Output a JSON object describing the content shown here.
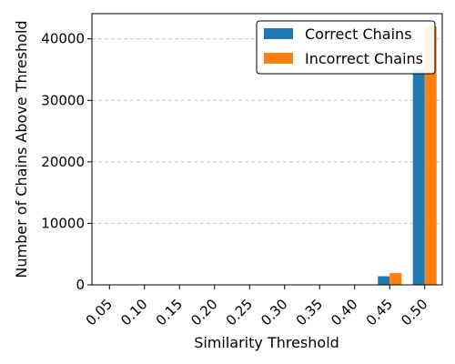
{
  "chart_data": {
    "type": "bar",
    "xlabel": "Similarity Threshold",
    "ylabel": "Number of Chains Above Threshold",
    "categories": [
      "0.05",
      "0.10",
      "0.15",
      "0.20",
      "0.25",
      "0.30",
      "0.35",
      "0.40",
      "0.45",
      "0.50"
    ],
    "series": [
      {
        "name": "Correct Chains",
        "color": "#1f77b4",
        "values": [
          0,
          0,
          0,
          0,
          0,
          0,
          0,
          0,
          1400,
          35000
        ]
      },
      {
        "name": "Incorrect Chains",
        "color": "#ff7f0e",
        "values": [
          0,
          0,
          0,
          0,
          0,
          0,
          0,
          0,
          1900,
          42000
        ]
      }
    ],
    "yticks": [
      "0",
      "10000",
      "20000",
      "30000",
      "40000"
    ],
    "ylim": [
      0,
      44100
    ],
    "grid": "y dashed",
    "legend_position": "top-right"
  }
}
